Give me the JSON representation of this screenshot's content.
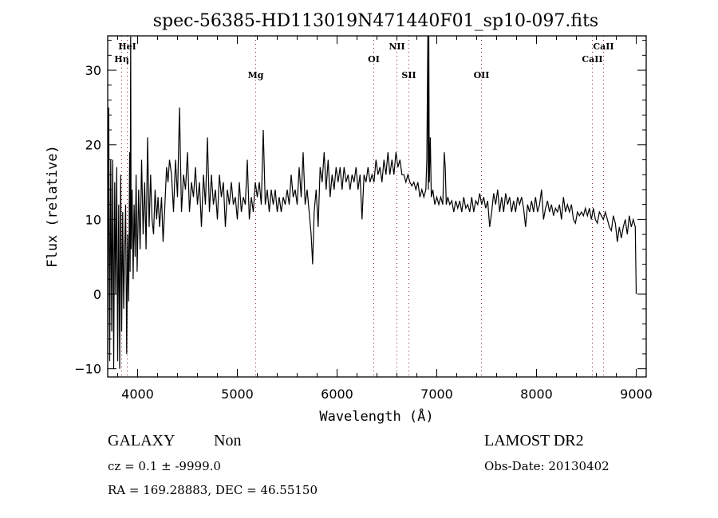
{
  "chart_data": {
    "type": "line",
    "title": "spec-56385-HD113019N471440F01_sp10-097.fits",
    "xlabel": "Wavelength (Å)",
    "ylabel": "Flux (relative)",
    "xlim": [
      3700,
      9100
    ],
    "ylim": [
      -11.1,
      34.6
    ],
    "x_ticks": [
      4000,
      5000,
      6000,
      7000,
      8000,
      9000
    ],
    "y_ticks": [
      -10,
      0,
      10,
      20,
      30
    ],
    "grid": false,
    "line_color": "#000000",
    "marker_color": "#8b1a1a",
    "lines": [
      {
        "name": "Hη",
        "wavelength": 3840,
        "row": 2
      },
      {
        "name": "HeI",
        "wavelength": 3896,
        "row": 1
      },
      {
        "name": "Mg",
        "wavelength": 5184,
        "row": 3
      },
      {
        "name": "OI",
        "wavelength": 6368,
        "row": 2
      },
      {
        "name": "NII",
        "wavelength": 6600,
        "row": 1
      },
      {
        "name": "SII",
        "wavelength": 6720,
        "row": 3
      },
      {
        "name": "OII",
        "wavelength": 7448,
        "row": 3
      },
      {
        "name": "CaII",
        "wavelength": 8560,
        "row": 2
      },
      {
        "name": "CaII",
        "wavelength": 8672,
        "row": 1
      }
    ],
    "spectrum": [
      [
        3700,
        -8
      ],
      [
        3710,
        25
      ],
      [
        3720,
        -9
      ],
      [
        3730,
        18
      ],
      [
        3740,
        -5
      ],
      [
        3750,
        18
      ],
      [
        3760,
        -10
      ],
      [
        3770,
        15
      ],
      [
        3780,
        0
      ],
      [
        3790,
        17
      ],
      [
        3800,
        -9
      ],
      [
        3810,
        12
      ],
      [
        3820,
        -10
      ],
      [
        3830,
        16
      ],
      [
        3840,
        -5
      ],
      [
        3850,
        11
      ],
      [
        3860,
        -2
      ],
      [
        3870,
        6
      ],
      [
        3880,
        12
      ],
      [
        3890,
        -8
      ],
      [
        3900,
        8
      ],
      [
        3910,
        -1
      ],
      [
        3920,
        19
      ],
      [
        3925,
        3
      ],
      [
        3930,
        34.5
      ],
      [
        3935,
        6
      ],
      [
        3945,
        14
      ],
      [
        3955,
        2
      ],
      [
        3965,
        12
      ],
      [
        3975,
        5
      ],
      [
        3985,
        16
      ],
      [
        3995,
        3
      ],
      [
        4010,
        14
      ],
      [
        4025,
        6
      ],
      [
        4040,
        18
      ],
      [
        4055,
        8
      ],
      [
        4070,
        15
      ],
      [
        4085,
        6
      ],
      [
        4100,
        21
      ],
      [
        4115,
        9
      ],
      [
        4130,
        16
      ],
      [
        4145,
        10
      ],
      [
        4160,
        8
      ],
      [
        4175,
        14
      ],
      [
        4190,
        10
      ],
      [
        4205,
        13
      ],
      [
        4220,
        9
      ],
      [
        4240,
        13
      ],
      [
        4255,
        7
      ],
      [
        4270,
        11
      ],
      [
        4290,
        17
      ],
      [
        4305,
        15
      ],
      [
        4320,
        18
      ],
      [
        4340,
        16
      ],
      [
        4360,
        11
      ],
      [
        4380,
        18
      ],
      [
        4400,
        13
      ],
      [
        4420,
        25
      ],
      [
        4440,
        11
      ],
      [
        4460,
        16
      ],
      [
        4480,
        14
      ],
      [
        4500,
        19
      ],
      [
        4520,
        11
      ],
      [
        4540,
        15
      ],
      [
        4560,
        13
      ],
      [
        4580,
        17
      ],
      [
        4600,
        12
      ],
      [
        4620,
        15
      ],
      [
        4640,
        9
      ],
      [
        4660,
        16
      ],
      [
        4680,
        12
      ],
      [
        4700,
        21
      ],
      [
        4720,
        11
      ],
      [
        4740,
        16
      ],
      [
        4760,
        12
      ],
      [
        4780,
        14
      ],
      [
        4800,
        10
      ],
      [
        4820,
        16
      ],
      [
        4840,
        13
      ],
      [
        4860,
        15
      ],
      [
        4880,
        9
      ],
      [
        4900,
        14
      ],
      [
        4920,
        12
      ],
      [
        4940,
        15
      ],
      [
        4960,
        12
      ],
      [
        4980,
        13
      ],
      [
        5000,
        10
      ],
      [
        5020,
        15
      ],
      [
        5040,
        11
      ],
      [
        5060,
        13
      ],
      [
        5080,
        12
      ],
      [
        5100,
        18
      ],
      [
        5120,
        10
      ],
      [
        5140,
        13
      ],
      [
        5160,
        11
      ],
      [
        5180,
        15
      ],
      [
        5200,
        13
      ],
      [
        5220,
        15
      ],
      [
        5240,
        12
      ],
      [
        5260,
        22
      ],
      [
        5280,
        12
      ],
      [
        5300,
        14
      ],
      [
        5320,
        11
      ],
      [
        5340,
        14
      ],
      [
        5360,
        12
      ],
      [
        5380,
        14
      ],
      [
        5400,
        11
      ],
      [
        5420,
        13
      ],
      [
        5440,
        11
      ],
      [
        5460,
        13
      ],
      [
        5480,
        12
      ],
      [
        5500,
        14
      ],
      [
        5520,
        12
      ],
      [
        5540,
        16
      ],
      [
        5560,
        13
      ],
      [
        5580,
        14
      ],
      [
        5600,
        12
      ],
      [
        5620,
        17
      ],
      [
        5640,
        13
      ],
      [
        5660,
        19
      ],
      [
        5680,
        12
      ],
      [
        5700,
        14
      ],
      [
        5720,
        11
      ],
      [
        5740,
        8
      ],
      [
        5755,
        4
      ],
      [
        5770,
        11
      ],
      [
        5790,
        14
      ],
      [
        5810,
        9
      ],
      [
        5830,
        17
      ],
      [
        5850,
        15
      ],
      [
        5870,
        19
      ],
      [
        5890,
        14
      ],
      [
        5910,
        18
      ],
      [
        5930,
        13
      ],
      [
        5950,
        16
      ],
      [
        5970,
        14
      ],
      [
        5990,
        17
      ],
      [
        6010,
        15
      ],
      [
        6030,
        17
      ],
      [
        6050,
        14
      ],
      [
        6070,
        17
      ],
      [
        6090,
        15
      ],
      [
        6110,
        16
      ],
      [
        6130,
        14
      ],
      [
        6150,
        16
      ],
      [
        6170,
        15
      ],
      [
        6190,
        17
      ],
      [
        6210,
        14
      ],
      [
        6230,
        16
      ],
      [
        6250,
        10
      ],
      [
        6270,
        16
      ],
      [
        6290,
        15
      ],
      [
        6310,
        17
      ],
      [
        6330,
        15
      ],
      [
        6350,
        16
      ],
      [
        6370,
        15
      ],
      [
        6390,
        18
      ],
      [
        6410,
        16
      ],
      [
        6430,
        17
      ],
      [
        6450,
        15
      ],
      [
        6470,
        18
      ],
      [
        6490,
        16
      ],
      [
        6510,
        19
      ],
      [
        6530,
        16
      ],
      [
        6550,
        18
      ],
      [
        6570,
        16
      ],
      [
        6590,
        19
      ],
      [
        6610,
        17
      ],
      [
        6630,
        18
      ],
      [
        6650,
        16
      ],
      [
        6670,
        16
      ],
      [
        6690,
        15
      ],
      [
        6710,
        16
      ],
      [
        6730,
        15
      ],
      [
        6750,
        14.5
      ],
      [
        6770,
        15
      ],
      [
        6790,
        14
      ],
      [
        6810,
        15
      ],
      [
        6830,
        13
      ],
      [
        6850,
        14
      ],
      [
        6870,
        13
      ],
      [
        6890,
        14
      ],
      [
        6900,
        18
      ],
      [
        6910,
        34.6
      ],
      [
        6915,
        14
      ],
      [
        6920,
        34.6
      ],
      [
        6925,
        15
      ],
      [
        6935,
        21
      ],
      [
        6945,
        13
      ],
      [
        6960,
        14
      ],
      [
        6980,
        12
      ],
      [
        7000,
        13
      ],
      [
        7020,
        12
      ],
      [
        7040,
        13
      ],
      [
        7060,
        12
      ],
      [
        7075,
        19
      ],
      [
        7085,
        17
      ],
      [
        7095,
        12
      ],
      [
        7110,
        13
      ],
      [
        7130,
        12
      ],
      [
        7150,
        12.5
      ],
      [
        7170,
        11
      ],
      [
        7190,
        12.5
      ],
      [
        7210,
        11.5
      ],
      [
        7230,
        12.5
      ],
      [
        7250,
        11
      ],
      [
        7270,
        13
      ],
      [
        7290,
        11.5
      ],
      [
        7310,
        12
      ],
      [
        7330,
        11
      ],
      [
        7350,
        13
      ],
      [
        7370,
        11
      ],
      [
        7390,
        12.5
      ],
      [
        7410,
        12
      ],
      [
        7430,
        13.5
      ],
      [
        7450,
        12
      ],
      [
        7470,
        13
      ],
      [
        7490,
        11.5
      ],
      [
        7510,
        12.5
      ],
      [
        7530,
        9
      ],
      [
        7550,
        11
      ],
      [
        7570,
        13.5
      ],
      [
        7590,
        12
      ],
      [
        7610,
        14
      ],
      [
        7630,
        11
      ],
      [
        7650,
        13
      ],
      [
        7670,
        11
      ],
      [
        7690,
        13.5
      ],
      [
        7710,
        12
      ],
      [
        7730,
        13
      ],
      [
        7750,
        11
      ],
      [
        7770,
        12.5
      ],
      [
        7790,
        11
      ],
      [
        7810,
        13
      ],
      [
        7830,
        12
      ],
      [
        7850,
        13
      ],
      [
        7870,
        11.5
      ],
      [
        7890,
        9
      ],
      [
        7910,
        12
      ],
      [
        7930,
        11
      ],
      [
        7950,
        12.5
      ],
      [
        7970,
        11
      ],
      [
        7990,
        13
      ],
      [
        8010,
        11
      ],
      [
        8030,
        12
      ],
      [
        8050,
        14
      ],
      [
        8070,
        10
      ],
      [
        8090,
        11.5
      ],
      [
        8110,
        12.5
      ],
      [
        8130,
        11
      ],
      [
        8150,
        12
      ],
      [
        8170,
        10.5
      ],
      [
        8190,
        11.5
      ],
      [
        8210,
        11
      ],
      [
        8230,
        12
      ],
      [
        8250,
        10
      ],
      [
        8270,
        13
      ],
      [
        8290,
        11
      ],
      [
        8310,
        12
      ],
      [
        8330,
        11
      ],
      [
        8350,
        12
      ],
      [
        8370,
        10
      ],
      [
        8390,
        9.5
      ],
      [
        8410,
        11
      ],
      [
        8430,
        10.5
      ],
      [
        8450,
        11
      ],
      [
        8470,
        10.5
      ],
      [
        8490,
        11.5
      ],
      [
        8510,
        10.5
      ],
      [
        8530,
        11.5
      ],
      [
        8550,
        10
      ],
      [
        8570,
        11.5
      ],
      [
        8590,
        10
      ],
      [
        8610,
        9.5
      ],
      [
        8630,
        11
      ],
      [
        8650,
        10.5
      ],
      [
        8670,
        10
      ],
      [
        8690,
        11
      ],
      [
        8710,
        10
      ],
      [
        8730,
        9
      ],
      [
        8750,
        8.5
      ],
      [
        8770,
        10.5
      ],
      [
        8790,
        9.5
      ],
      [
        8810,
        7
      ],
      [
        8830,
        9
      ],
      [
        8850,
        7.5
      ],
      [
        8870,
        9
      ],
      [
        8890,
        10
      ],
      [
        8910,
        8
      ],
      [
        8930,
        10.5
      ],
      [
        8950,
        9
      ],
      [
        8970,
        10
      ],
      [
        8990,
        9
      ],
      [
        9000,
        0
      ]
    ]
  },
  "info": {
    "class": "GALAXY",
    "subclass": "Non",
    "survey": "LAMOST DR2",
    "cz": "cz = 0.1 ± -9999.0",
    "obs_date": "Obs-Date: 20130402",
    "coords": "RA = 169.28883, DEC =  46.55150"
  }
}
